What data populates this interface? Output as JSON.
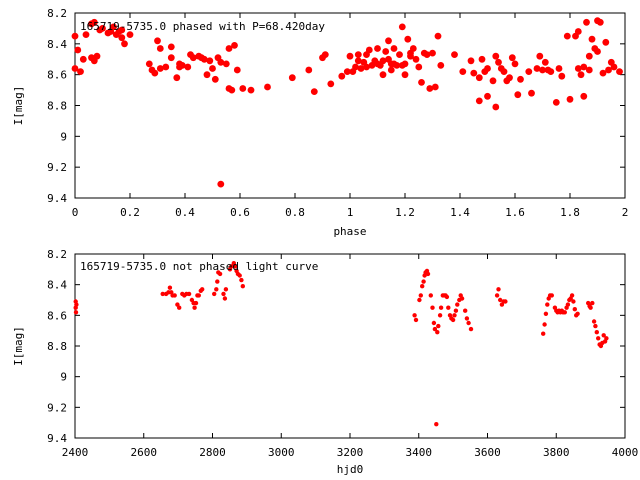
{
  "colors": {
    "points": "#ff0000",
    "axes": "#000000",
    "background": "#ffffff"
  },
  "chart_data": [
    {
      "type": "scatter",
      "title": "165719-5735.0 phased with P=68.420day",
      "xlabel": "phase",
      "ylabel": "I[mag]",
      "xlim": [
        0,
        2
      ],
      "ylim": [
        9.4,
        8.2
      ],
      "y_inverted": true,
      "xticks": [
        0,
        0.2,
        0.4,
        0.6,
        0.8,
        1,
        1.2,
        1.4,
        1.6,
        1.8,
        2
      ],
      "xtick_labels": [
        "0",
        "0.2",
        "0.4",
        "0.6",
        "0.8",
        "1",
        "1.2",
        "1.4",
        "1.6",
        "1.8",
        "2"
      ],
      "yticks": [
        8.2,
        8.4,
        8.6,
        8.8,
        9,
        9.2,
        9.4
      ],
      "ytick_labels": [
        "8.2",
        "8.4",
        "8.6",
        "8.8",
        "9",
        "9.2",
        "9.4"
      ],
      "grid": false,
      "marker": "filled-circle-large",
      "points": [
        [
          0.0,
          8.35
        ],
        [
          0.0,
          8.56
        ],
        [
          0.01,
          8.44
        ],
        [
          0.02,
          8.58
        ],
        [
          0.03,
          8.5
        ],
        [
          0.04,
          8.34
        ],
        [
          0.06,
          8.49
        ],
        [
          0.06,
          8.27
        ],
        [
          0.07,
          8.51
        ],
        [
          0.07,
          8.26
        ],
        [
          0.08,
          8.48
        ],
        [
          0.09,
          8.31
        ],
        [
          0.1,
          8.3
        ],
        [
          0.12,
          8.33
        ],
        [
          0.13,
          8.32
        ],
        [
          0.14,
          8.29
        ],
        [
          0.15,
          8.34
        ],
        [
          0.16,
          8.32
        ],
        [
          0.17,
          8.36
        ],
        [
          0.17,
          8.31
        ],
        [
          0.18,
          8.4
        ],
        [
          0.2,
          8.34
        ],
        [
          0.27,
          8.53
        ],
        [
          0.28,
          8.57
        ],
        [
          0.29,
          8.59
        ],
        [
          0.3,
          8.38
        ],
        [
          0.31,
          8.43
        ],
        [
          0.31,
          8.56
        ],
        [
          0.33,
          8.55
        ],
        [
          0.35,
          8.49
        ],
        [
          0.35,
          8.42
        ],
        [
          0.37,
          8.62
        ],
        [
          0.38,
          8.53
        ],
        [
          0.38,
          8.55
        ],
        [
          0.39,
          8.54
        ],
        [
          0.41,
          8.55
        ],
        [
          0.42,
          8.47
        ],
        [
          0.43,
          8.49
        ],
        [
          0.45,
          8.48
        ],
        [
          0.46,
          8.49
        ],
        [
          0.47,
          8.5
        ],
        [
          0.48,
          8.6
        ],
        [
          0.49,
          8.51
        ],
        [
          0.5,
          8.56
        ],
        [
          0.51,
          8.63
        ],
        [
          0.52,
          8.49
        ],
        [
          0.53,
          8.52
        ],
        [
          0.53,
          9.31
        ],
        [
          0.55,
          8.53
        ],
        [
          0.56,
          8.43
        ],
        [
          0.56,
          8.69
        ],
        [
          0.57,
          8.7
        ],
        [
          0.58,
          8.41
        ],
        [
          0.59,
          8.57
        ],
        [
          0.61,
          8.69
        ],
        [
          0.64,
          8.7
        ],
        [
          0.7,
          8.68
        ],
        [
          0.79,
          8.62
        ],
        [
          0.85,
          8.57
        ],
        [
          0.87,
          8.71
        ],
        [
          0.9,
          8.49
        ],
        [
          0.91,
          8.47
        ],
        [
          0.93,
          8.66
        ],
        [
          0.97,
          8.61
        ],
        [
          0.99,
          8.58
        ],
        [
          1.0,
          8.48
        ],
        [
          1.01,
          8.58
        ],
        [
          1.02,
          8.55
        ],
        [
          1.03,
          8.51
        ],
        [
          1.03,
          8.47
        ],
        [
          1.04,
          8.56
        ],
        [
          1.05,
          8.52
        ],
        [
          1.06,
          8.47
        ],
        [
          1.06,
          8.55
        ],
        [
          1.07,
          8.44
        ],
        [
          1.08,
          8.54
        ],
        [
          1.09,
          8.51
        ],
        [
          1.1,
          8.53
        ],
        [
          1.1,
          8.43
        ],
        [
          1.11,
          8.54
        ],
        [
          1.12,
          8.6
        ],
        [
          1.12,
          8.51
        ],
        [
          1.13,
          8.45
        ],
        [
          1.14,
          8.5
        ],
        [
          1.14,
          8.38
        ],
        [
          1.15,
          8.53
        ],
        [
          1.15,
          8.57
        ],
        [
          1.16,
          8.43
        ],
        [
          1.16,
          8.53
        ],
        [
          1.17,
          8.54
        ],
        [
          1.18,
          8.47
        ],
        [
          1.19,
          8.54
        ],
        [
          1.19,
          8.29
        ],
        [
          1.2,
          8.53
        ],
        [
          1.2,
          8.6
        ],
        [
          1.21,
          8.37
        ],
        [
          1.22,
          8.48
        ],
        [
          1.22,
          8.46
        ],
        [
          1.23,
          8.43
        ],
        [
          1.24,
          8.5
        ],
        [
          1.25,
          8.55
        ],
        [
          1.26,
          8.65
        ],
        [
          1.27,
          8.46
        ],
        [
          1.28,
          8.47
        ],
        [
          1.29,
          8.69
        ],
        [
          1.3,
          8.46
        ],
        [
          1.31,
          8.68
        ],
        [
          1.32,
          8.35
        ],
        [
          1.33,
          8.54
        ],
        [
          1.38,
          8.47
        ],
        [
          1.41,
          8.58
        ],
        [
          1.44,
          8.51
        ],
        [
          1.45,
          8.59
        ],
        [
          1.47,
          8.62
        ],
        [
          1.47,
          8.77
        ],
        [
          1.48,
          8.5
        ],
        [
          1.49,
          8.58
        ],
        [
          1.5,
          8.74
        ],
        [
          1.5,
          8.56
        ],
        [
          1.52,
          8.64
        ],
        [
          1.53,
          8.81
        ],
        [
          1.53,
          8.48
        ],
        [
          1.54,
          8.52
        ],
        [
          1.55,
          8.56
        ],
        [
          1.56,
          8.58
        ],
        [
          1.57,
          8.64
        ],
        [
          1.58,
          8.62
        ],
        [
          1.59,
          8.49
        ],
        [
          1.6,
          8.53
        ],
        [
          1.61,
          8.73
        ],
        [
          1.62,
          8.63
        ],
        [
          1.65,
          8.58
        ],
        [
          1.66,
          8.72
        ],
        [
          1.68,
          8.56
        ],
        [
          1.69,
          8.48
        ],
        [
          1.7,
          8.57
        ],
        [
          1.71,
          8.52
        ],
        [
          1.72,
          8.57
        ],
        [
          1.73,
          8.58
        ],
        [
          1.75,
          8.78
        ],
        [
          1.76,
          8.56
        ],
        [
          1.77,
          8.61
        ],
        [
          1.79,
          8.35
        ],
        [
          1.8,
          8.76
        ],
        [
          1.82,
          8.35
        ],
        [
          1.83,
          8.32
        ],
        [
          1.83,
          8.56
        ],
        [
          1.84,
          8.6
        ],
        [
          1.85,
          8.74
        ],
        [
          1.85,
          8.55
        ],
        [
          1.86,
          8.26
        ],
        [
          1.87,
          8.57
        ],
        [
          1.87,
          8.48
        ],
        [
          1.88,
          8.37
        ],
        [
          1.89,
          8.43
        ],
        [
          1.9,
          8.45
        ],
        [
          1.9,
          8.25
        ],
        [
          1.91,
          8.26
        ],
        [
          1.92,
          8.59
        ],
        [
          1.93,
          8.39
        ],
        [
          1.94,
          8.57
        ],
        [
          1.95,
          8.52
        ],
        [
          1.96,
          8.55
        ],
        [
          1.98,
          8.58
        ]
      ]
    },
    {
      "type": "scatter",
      "title": "165719-5735.0 not phased light curve",
      "xlabel": "hjd0",
      "ylabel": "I[mag]",
      "xlim": [
        2400,
        4000
      ],
      "ylim": [
        9.4,
        8.2
      ],
      "y_inverted": true,
      "xticks": [
        2400,
        2600,
        2800,
        3000,
        3200,
        3400,
        3600,
        3800,
        4000
      ],
      "xtick_labels": [
        "2400",
        "2600",
        "2800",
        "3000",
        "3200",
        "3400",
        "3600",
        "3800",
        "4000"
      ],
      "yticks": [
        8.2,
        8.4,
        8.6,
        8.8,
        9,
        9.2,
        9.4
      ],
      "ytick_labels": [
        "8.2",
        "8.4",
        "8.6",
        "8.8",
        "9",
        "9.2",
        "9.4"
      ],
      "grid": false,
      "marker": "filled-circle-small",
      "points": [
        [
          2402,
          8.51
        ],
        [
          2402,
          8.55
        ],
        [
          2403,
          8.58
        ],
        [
          2404,
          8.53
        ],
        [
          2655,
          8.46
        ],
        [
          2665,
          8.46
        ],
        [
          2672,
          8.45
        ],
        [
          2676,
          8.42
        ],
        [
          2680,
          8.45
        ],
        [
          2684,
          8.47
        ],
        [
          2690,
          8.47
        ],
        [
          2698,
          8.53
        ],
        [
          2703,
          8.55
        ],
        [
          2712,
          8.46
        ],
        [
          2718,
          8.47
        ],
        [
          2724,
          8.46
        ],
        [
          2732,
          8.46
        ],
        [
          2740,
          8.5
        ],
        [
          2745,
          8.52
        ],
        [
          2748,
          8.55
        ],
        [
          2752,
          8.52
        ],
        [
          2756,
          8.47
        ],
        [
          2760,
          8.47
        ],
        [
          2766,
          8.44
        ],
        [
          2770,
          8.43
        ],
        [
          2805,
          8.46
        ],
        [
          2811,
          8.43
        ],
        [
          2814,
          8.38
        ],
        [
          2817,
          8.32
        ],
        [
          2822,
          8.33
        ],
        [
          2832,
          8.46
        ],
        [
          2836,
          8.49
        ],
        [
          2839,
          8.43
        ],
        [
          2851,
          8.3
        ],
        [
          2855,
          8.28
        ],
        [
          2862,
          8.26
        ],
        [
          2866,
          8.28
        ],
        [
          2870,
          8.31
        ],
        [
          2874,
          8.33
        ],
        [
          2879,
          8.34
        ],
        [
          2884,
          8.37
        ],
        [
          2888,
          8.41
        ],
        [
          3388,
          8.6
        ],
        [
          3392,
          8.63
        ],
        [
          3402,
          8.5
        ],
        [
          3406,
          8.47
        ],
        [
          3410,
          8.41
        ],
        [
          3414,
          8.38
        ],
        [
          3417,
          8.34
        ],
        [
          3420,
          8.32
        ],
        [
          3424,
          8.31
        ],
        [
          3427,
          8.33
        ],
        [
          3435,
          8.47
        ],
        [
          3440,
          8.55
        ],
        [
          3444,
          8.65
        ],
        [
          3447,
          8.69
        ],
        [
          3451,
          9.31
        ],
        [
          3454,
          8.71
        ],
        [
          3457,
          8.67
        ],
        [
          3462,
          8.6
        ],
        [
          3465,
          8.55
        ],
        [
          3470,
          8.47
        ],
        [
          3474,
          8.47
        ],
        [
          3478,
          8.47
        ],
        [
          3482,
          8.48
        ],
        [
          3486,
          8.55
        ],
        [
          3491,
          8.6
        ],
        [
          3495,
          8.62
        ],
        [
          3500,
          8.63
        ],
        [
          3504,
          8.6
        ],
        [
          3508,
          8.57
        ],
        [
          3512,
          8.53
        ],
        [
          3518,
          8.5
        ],
        [
          3522,
          8.47
        ],
        [
          3526,
          8.49
        ],
        [
          3535,
          8.57
        ],
        [
          3540,
          8.62
        ],
        [
          3545,
          8.65
        ],
        [
          3552,
          8.69
        ],
        [
          3628,
          8.47
        ],
        [
          3632,
          8.43
        ],
        [
          3637,
          8.5
        ],
        [
          3642,
          8.53
        ],
        [
          3647,
          8.51
        ],
        [
          3652,
          8.51
        ],
        [
          3762,
          8.72
        ],
        [
          3766,
          8.66
        ],
        [
          3770,
          8.59
        ],
        [
          3774,
          8.53
        ],
        [
          3778,
          8.49
        ],
        [
          3782,
          8.47
        ],
        [
          3787,
          8.47
        ],
        [
          3796,
          8.55
        ],
        [
          3800,
          8.57
        ],
        [
          3804,
          8.58
        ],
        [
          3808,
          8.57
        ],
        [
          3812,
          8.58
        ],
        [
          3816,
          8.57
        ],
        [
          3820,
          8.58
        ],
        [
          3825,
          8.58
        ],
        [
          3830,
          8.55
        ],
        [
          3834,
          8.53
        ],
        [
          3838,
          8.5
        ],
        [
          3842,
          8.49
        ],
        [
          3846,
          8.47
        ],
        [
          3850,
          8.51
        ],
        [
          3854,
          8.56
        ],
        [
          3858,
          8.6
        ],
        [
          3862,
          8.59
        ],
        [
          3893,
          8.52
        ],
        [
          3897,
          8.54
        ],
        [
          3900,
          8.55
        ],
        [
          3905,
          8.52
        ],
        [
          3910,
          8.64
        ],
        [
          3914,
          8.67
        ],
        [
          3918,
          8.71
        ],
        [
          3922,
          8.75
        ],
        [
          3926,
          8.79
        ],
        [
          3930,
          8.8
        ],
        [
          3934,
          8.78
        ],
        [
          3938,
          8.73
        ],
        [
          3942,
          8.77
        ],
        [
          3946,
          8.75
        ]
      ]
    }
  ]
}
